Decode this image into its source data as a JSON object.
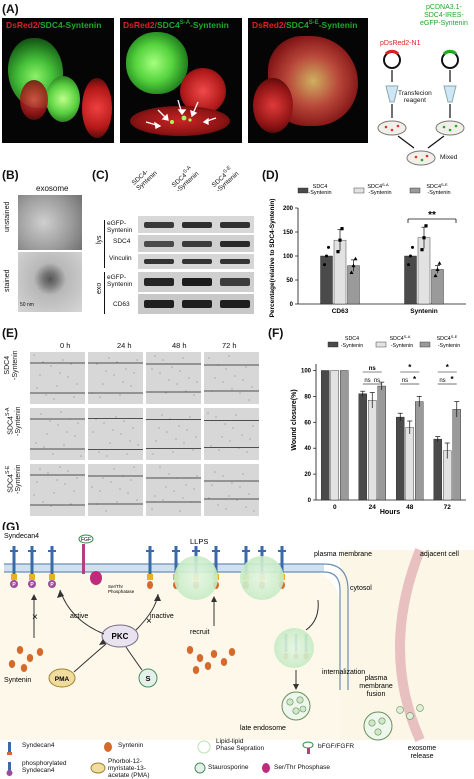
{
  "panelA": {
    "label": "(A)",
    "images": [
      {
        "prefix": "DsRed2/",
        "rest": "SDC4-Syntenin"
      },
      {
        "prefix": "DsRed2/",
        "rest": "SDC4",
        "sup": "S-A",
        "suffix": "-Syntenin"
      },
      {
        "prefix": "DsRed2/",
        "rest": "SDC4",
        "sup": "S-E",
        "suffix": "-Syntenin"
      }
    ],
    "plasmid1": "pDsRed2-N1",
    "plasmid2_l1": "pCDNA3.1-",
    "plasmid2_l2": "SDC4-IRES-",
    "plasmid2_l3": "eGFP-Syntenin",
    "transfection1": "Transfecion",
    "transfection2": "reagent",
    "mixed": "Mixed"
  },
  "panelB": {
    "label": "(B)",
    "title": "exosome",
    "unstained": "unstained",
    "stained": "stained",
    "scale": "50 nm"
  },
  "panelC": {
    "label": "(C)",
    "lanes": [
      "SDC4-Syntenin",
      "SDC4S-A-Syntenin",
      "SDC4S-E-Syntenin"
    ],
    "lane1a": "SDC4-",
    "lane1b": "Syntenin",
    "lane2a": "SDC4",
    "lane2sup": "S-A",
    "lane2b": "-Syntenin",
    "lane3a": "SDC4",
    "lane3sup": "S-E",
    "lane3b": "-Syntenin",
    "group_lys": "lys",
    "group_exo": "exo",
    "rows": [
      "eGFP-\nSyntenin",
      "SDC4",
      "Vinculin",
      "eGFP-\nSyntenin",
      "CD63"
    ],
    "r1a": "eGFP-",
    "r1b": "Syntenin",
    "r2": "SDC4",
    "r3": "Vinculin",
    "r4a": "eGFP-",
    "r4b": "Syntenin",
    "r5": "CD63"
  },
  "panelD": {
    "label": "(D)",
    "ylabel": "Percentage(relative to SDC4-Syntenin)",
    "legend1a": "SDC4",
    "legend1b": "-Syntenin",
    "legend2a": "SDC4",
    "legend2sup": "S-A",
    "legend2b": "-Syntenin",
    "legend3a": "SDC4",
    "legend3sup": "S-E",
    "legend3b": "-Syntenin",
    "sig": "**",
    "yticks": [
      "0",
      "50",
      "100",
      "150",
      "200"
    ]
  },
  "panelE": {
    "label": "(E)",
    "times": [
      "0 h",
      "24 h",
      "48 h",
      "72 h"
    ],
    "row1a": "SDC4",
    "row1b": "-Syntenin",
    "row2a": "SDC4",
    "row2sup": "S-A",
    "row2b": "-Syntenin",
    "row3a": "SDC4",
    "row3sup": "S-E",
    "row3b": "-Syntenin"
  },
  "panelF": {
    "label": "(F)",
    "ylabel": "Wound closure(%)",
    "xlabel": "Hours",
    "yticks": [
      "0",
      "20",
      "40",
      "60",
      "80",
      "100"
    ],
    "legend1a": "SDC4",
    "legend1b": "-Syntenin",
    "legend2a": "SDC4",
    "legend2sup": "S-A",
    "legend2b": "-Syntenin",
    "legend3a": "SDC4",
    "legend3sup": "S-E",
    "legend3b": "-Syntenin",
    "ns": "ns",
    "star": "*"
  },
  "panelG": {
    "label": "(G)",
    "syndecan4": "Syndecan4",
    "bfgf": "FGF",
    "serthr_l1": "Ser/Thr",
    "serthr_l2": "Phosphatase",
    "active": "active",
    "inactive": "inactive",
    "pkc": "PKC",
    "pma": "PMA",
    "s": "S",
    "syntenin": "Syntenin",
    "llps": "LLPS",
    "recruit": "recruit",
    "plasma_membrane": "plasma membrane",
    "cytosol": "cytosol",
    "adjacent_cell": "adjacent cell",
    "internalization": "internalization",
    "late_endosome": "late endosome",
    "pm_fusion_l1": "plasma",
    "pm_fusion_l2": "membrane",
    "pm_fusion_l3": "fusion",
    "exosome_l1": "exosome",
    "exosome_l2": "release",
    "leg_syndecan4": "Syndecan4",
    "leg_syntenin": "Syntenin",
    "leg_llps_l1": "Lipid-lipid",
    "leg_llps_l2": "Phase Sepration",
    "leg_bfgf": "bFGF/FGFR",
    "leg_phos_l1": "phosphorylated",
    "leg_phos_l2": "Syndecan4",
    "leg_pma_l1": "Phorbol-12-",
    "leg_pma_l2": "myristate-13-",
    "leg_pma_l3": "acetate (PMA)",
    "leg_stauro": "Staurosporine",
    "leg_serthr": "Ser/Thr Phosphase",
    "p": "P"
  },
  "chart_data": [
    {
      "type": "bar",
      "panel": "D",
      "categories": [
        "CD63",
        "Syntenin"
      ],
      "series": [
        {
          "name": "SDC4-Syntenin",
          "values": [
            100,
            100
          ],
          "color": "#4a4a4a"
        },
        {
          "name": "SDC4S-A-Syntenin",
          "values": [
            133,
            138
          ],
          "color": "#e2e2e2"
        },
        {
          "name": "SDC4S-E-Syntenin",
          "values": [
            80,
            72
          ],
          "color": "#9a9a9a"
        }
      ],
      "errors": [
        [
          0,
          0
        ],
        [
          22,
          22
        ],
        [
          12,
          8
        ]
      ],
      "ylim": [
        0,
        200
      ],
      "ylabel": "Percentage(relative to SDC4-Syntenin)"
    },
    {
      "type": "bar",
      "panel": "F",
      "categories": [
        "0",
        "24",
        "48",
        "72"
      ],
      "series": [
        {
          "name": "SDC4-Syntenin",
          "values": [
            100,
            82,
            64,
            47
          ],
          "color": "#4a4a4a"
        },
        {
          "name": "SDC4S-A-Syntenin",
          "values": [
            100,
            77,
            56,
            38
          ],
          "color": "#e2e2e2"
        },
        {
          "name": "SDC4S-E-Syntenin",
          "values": [
            100,
            88,
            76,
            70
          ],
          "color": "#9a9a9a"
        }
      ],
      "errors": [
        [
          0,
          2,
          3,
          2
        ],
        [
          0,
          6,
          5,
          6
        ],
        [
          0,
          3,
          4,
          6
        ]
      ],
      "ylim": [
        0,
        105
      ],
      "xlabel": "Hours",
      "ylabel": "Wound closure(%)"
    }
  ]
}
